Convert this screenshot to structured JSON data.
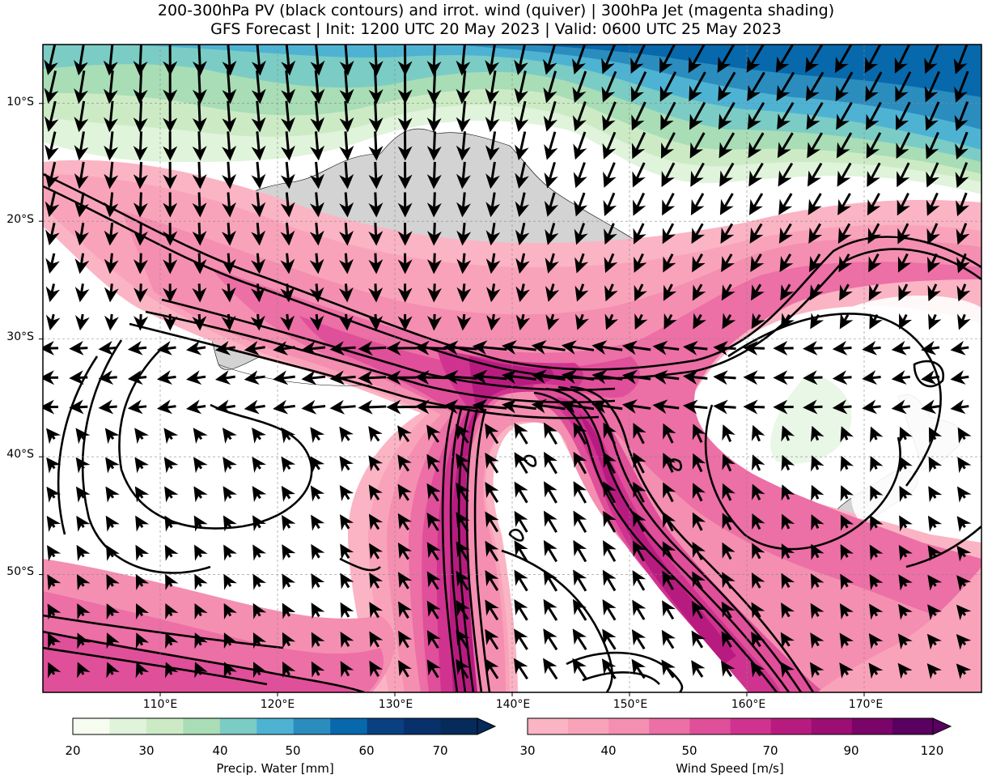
{
  "title": {
    "line1": "200-300hPa PV (black contours) and irrot. wind (quiver) | 300hPa Jet (magenta shading)",
    "line2": "GFS Forecast | Init: 1200 UTC 20 May 2023 | Valid: 0600 UTC 25 May 2023"
  },
  "axes": {
    "lat_labels": [
      "10°S",
      "20°S",
      "30°S",
      "40°S",
      "50°S"
    ],
    "lon_labels": [
      "110°E",
      "120°E",
      "130°E",
      "140°E",
      "150°E",
      "160°E",
      "170°E"
    ],
    "extent": {
      "lon_min": 100,
      "lon_max": 180,
      "lat_min": -60,
      "lat_max": -5
    }
  },
  "colorbars": {
    "pw": {
      "label": "Precip. Water [mm]",
      "ticks": [
        "20",
        "30",
        "40",
        "50",
        "60",
        "70"
      ],
      "levels": [
        20,
        25,
        30,
        35,
        40,
        45,
        50,
        55,
        60,
        65,
        70,
        75
      ],
      "colors": [
        "#f7fcf0",
        "#e0f3db",
        "#ccebc5",
        "#a8ddb5",
        "#7bccc4",
        "#4eb3d3",
        "#2b8cbe",
        "#0868ac",
        "#084081",
        "#08306b",
        "#062a5a"
      ]
    },
    "wind": {
      "label": "Wind Speed [m/s]",
      "ticks": [
        "30",
        "40",
        "50",
        "70",
        "90",
        "120"
      ],
      "levels": [
        30,
        40,
        45,
        50,
        60,
        70,
        80,
        90,
        100,
        110,
        120
      ],
      "colors": [
        "#fbb4c4",
        "#f9a3ba",
        "#f48fb1",
        "#ec6fa5",
        "#e04f99",
        "#d0338f",
        "#b81b80",
        "#9c0e73",
        "#7b0468",
        "#5a0060"
      ]
    }
  },
  "colors": {
    "land": "#d3d3d3",
    "contour": "#000000",
    "background": "#ffffff"
  }
}
